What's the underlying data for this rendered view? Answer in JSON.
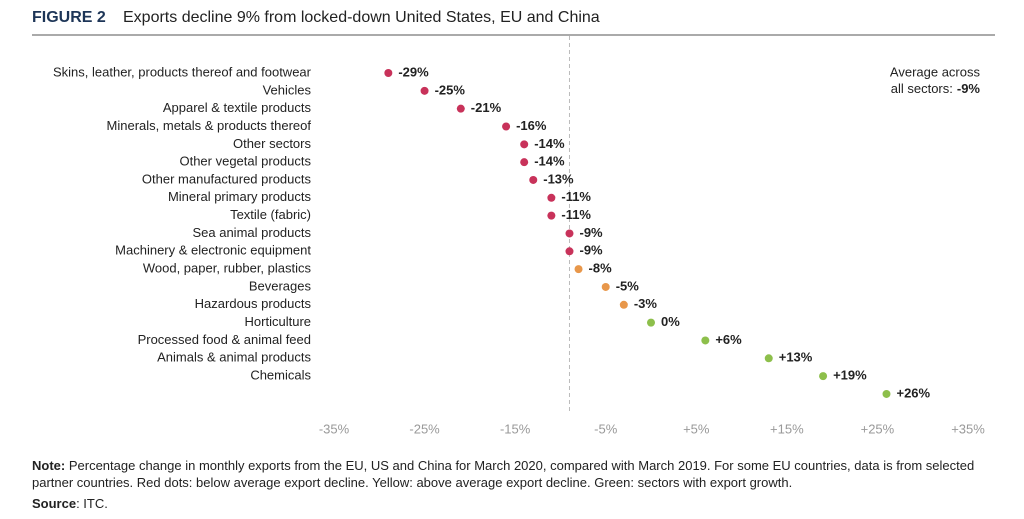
{
  "chart_data": {
    "type": "dot",
    "figure_label": "FIGURE 2",
    "title": "Exports decline 9% from locked-down United States, EU and China",
    "categories": [
      "Skins, leather, products thereof and footwear",
      "Vehicles",
      "Apparel & textile products",
      "Minerals, metals & products thereof",
      "Other sectors",
      "Other vegetal products",
      "Other manufactured products",
      "Mineral primary products",
      "Textile (fabric)",
      "Sea animal products",
      "Machinery & electronic equipment",
      "Wood, paper, rubber, plastics",
      "Beverages",
      "Hazardous products",
      "Horticulture",
      "Processed food & animal feed",
      "Animals & animal products",
      "Chemicals",
      null
    ],
    "values": [
      -29,
      -25,
      -21,
      -16,
      -14,
      -14,
      -13,
      -11,
      -11,
      -9,
      -9,
      -8,
      -5,
      -3,
      0,
      6,
      13,
      19,
      26
    ],
    "value_labels": [
      "-29%",
      "-25%",
      "-21%",
      "-16%",
      "-14%",
      "-14%",
      "-13%",
      "-11%",
      "-11%",
      "-9%",
      "-9%",
      "-8%",
      "-5%",
      "-3%",
      "0%",
      "+6%",
      "+13%",
      "+19%",
      "+26%"
    ],
    "colors": [
      "#c8325a",
      "#c8325a",
      "#c8325a",
      "#c8325a",
      "#c8325a",
      "#c8325a",
      "#c8325a",
      "#c8325a",
      "#c8325a",
      "#c8325a",
      "#c8325a",
      "#e8974a",
      "#e8974a",
      "#e8974a",
      "#8dbf4b",
      "#8dbf4b",
      "#8dbf4b",
      "#8dbf4b",
      "#8dbf4b"
    ],
    "xlim": [
      -35,
      35
    ],
    "xticks": [
      {
        "value": -35,
        "label": "-35%"
      },
      {
        "value": -25,
        "label": "-25%"
      },
      {
        "value": -15,
        "label": "-15%"
      },
      {
        "value": -5,
        "label": "-5%"
      },
      {
        "value": 5,
        "label": "+5%"
      },
      {
        "value": 15,
        "label": "+15%"
      },
      {
        "value": 25,
        "label": "+25%"
      },
      {
        "value": 35,
        "label": "+35%"
      }
    ],
    "annotation": {
      "lines": [
        "Average across",
        "all sectors:"
      ],
      "value": -9,
      "label": "-9%"
    },
    "note_label": "Note:",
    "note": "Percentage change in monthly exports from the EU, US and China for March 2020, compared with March 2019. For some EU countries, data is from selected partner countries. Red dots: below average export decline. Yellow: above average export decline. Green: sectors with export growth.",
    "source_label": "Source",
    "source": ": ITC."
  }
}
